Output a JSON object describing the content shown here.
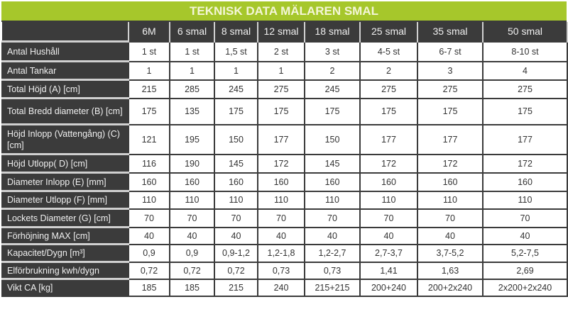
{
  "title": "TEKNISK DATA MÄLAREN SMAL",
  "colors": {
    "title_bg": "#a6c72b",
    "dark": "#3b3b3b"
  },
  "columns": [
    "6M",
    "6 smal",
    "8 smal",
    "12 smal",
    "18 smal",
    "25 smal",
    "35 smal",
    "50 smal"
  ],
  "rows": [
    {
      "label": "Antal Hushåll",
      "values": [
        "1 st",
        "1 st",
        "1,5 st",
        "2 st",
        "3 st",
        "4-5 st",
        "6-7 st",
        "8-10 st"
      ]
    },
    {
      "label": "Antal Tankar",
      "values": [
        "1",
        "1",
        "1",
        "1",
        "2",
        "2",
        "3",
        "4"
      ]
    },
    {
      "label": "Total Höjd (A) [cm]",
      "values": [
        "215",
        "285",
        "245",
        "275",
        "245",
        "275",
        "275",
        "275"
      ]
    },
    {
      "label": "Total Bredd diameter (B) [cm]",
      "values": [
        "175",
        "135",
        "175",
        "175",
        "175",
        "175",
        "175",
        "175"
      ]
    },
    {
      "label": "Höjd Inlopp (Vattengång) (C)[cm]",
      "values": [
        "121",
        "195",
        "150",
        "177",
        "150",
        "177",
        "177",
        "177"
      ]
    },
    {
      "label": "Höjd Utlopp( D) [cm]",
      "values": [
        "116",
        "190",
        "145",
        "172",
        "145",
        "172",
        "172",
        "172"
      ]
    },
    {
      "label": "Diameter Inlopp (E) [mm]",
      "values": [
        "160",
        "160",
        "160",
        "160",
        "160",
        "160",
        "160",
        "160"
      ]
    },
    {
      "label": "Diameter Utlopp (F) [mm]",
      "values": [
        "110",
        "110",
        "110",
        "110",
        "110",
        "110",
        "110",
        "110"
      ]
    },
    {
      "label": "Lockets Diameter (G) [cm]",
      "values": [
        "70",
        "70",
        "70",
        "70",
        "70",
        "70",
        "70",
        "70"
      ]
    },
    {
      "label": "Förhöjning MAX [cm]",
      "values": [
        "40",
        "40",
        "40",
        "40",
        "40",
        "40",
        "40",
        "40"
      ]
    },
    {
      "label": "Kapacitet/Dygn [m³]",
      "values": [
        "0,9",
        "0,9",
        "0,9-1,2",
        "1,2-1,8",
        "1,2-2,7",
        "2,7-3,7",
        "3,7-5,2",
        "5,2-7,5"
      ]
    },
    {
      "label": "Elförbrukning kwh/dygn",
      "values": [
        "0,72",
        "0,72",
        "0,72",
        "0,73",
        "0,73",
        "1,41",
        "1,63",
        "2,69"
      ]
    },
    {
      "label": "Vikt CA [kg]",
      "values": [
        "185",
        "185",
        "215",
        "240",
        "215+215",
        "200+240",
        "200+2x240",
        "2x200+2x240"
      ]
    }
  ]
}
